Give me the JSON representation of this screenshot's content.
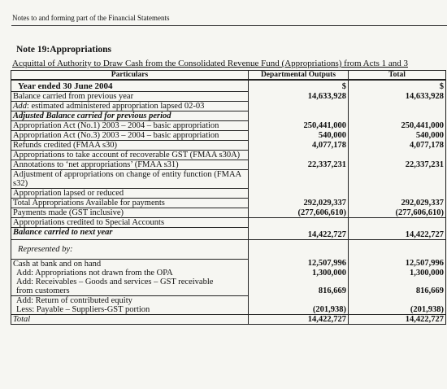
{
  "page_header": "Notes to and forming part of the Financial Statements",
  "note_title": "Note 19:Appropriations",
  "subtitle": "Acquittal of Authority to Draw Cash from the Consolidated Revenue Fund (Appropriations) from Acts 1 and 3",
  "columns": {
    "particulars": "Particulars",
    "departmental_outputs": "Departmental Outputs",
    "total": "Total"
  },
  "year_label": "Year ended 30 June 2004",
  "currency": {
    "dept": "$",
    "total": "$"
  },
  "rows": {
    "r1": {
      "label": "Balance carried from previous year",
      "dept": "14,633,928",
      "total": "14,633,928"
    },
    "r2": {
      "label_em": "Add",
      "label": ": estimated administered appropriation lapsed 02-03"
    },
    "r3": {
      "label": "Adjusted Balance carried for previous period"
    },
    "r4": {
      "label": "Appropriation Act (No.1) 2003 – 2004 – basic appropriation",
      "dept": "250,441,000",
      "total": "250,441,000"
    },
    "r5": {
      "label": "Appropriation Act (No.3) 2003 – 2004 – basic appropriation",
      "dept": "540,000",
      "total": "540,000"
    },
    "r6": {
      "label": "Refunds credited (FMAA s30)",
      "dept": "4,077,178",
      "total": "4,077,178"
    },
    "r7": {
      "label": "Appropriations to take account of recoverable GST (FMAA s30A)"
    },
    "r8": {
      "label": "Annotations to ‘net appropriations’ (FMAA s31)",
      "dept": "22,337,231",
      "total": "22,337,231"
    },
    "r9": {
      "label": "Adjustment of appropriations on change of entity function (FMAA s32)"
    },
    "r10": {
      "label": "Appropriation lapsed or reduced"
    },
    "r11": {
      "label": "Total Appropriations Available for payments",
      "dept": "292,029,337",
      "total": "292,029,337"
    },
    "r12": {
      "label": "Payments made (GST inclusive)",
      "dept": "(277,606,610)",
      "total": "(277,606,610)"
    },
    "r13": {
      "label": "Appropriations credited to Special Accounts"
    },
    "r14": {
      "label": "Balance carried to next year",
      "dept": "14,422,727",
      "total": "14,422,727"
    },
    "represented_by": "Represented by:",
    "r15": {
      "label": "Cash at bank and on hand",
      "dept": "12,507,996",
      "total": "12,507,996"
    },
    "r16": {
      "label": "Add: Appropriations not drawn from the OPA",
      "dept": "1,300,000",
      "total": "1,300,000"
    },
    "r17": {
      "label": "Add: Receivables – Goods and services – GST receivable"
    },
    "r18": {
      "label": "from customers",
      "dept": "816,669",
      "total": "816,669"
    },
    "r19": {
      "label": "Add: Return of contributed equity"
    },
    "r20": {
      "label": "Less: Payable – Suppliers-GST portion",
      "dept": "(201,938)",
      "total": "(201,938)"
    },
    "r21": {
      "label": "Total",
      "dept": "14,422,727",
      "total": "14,422,727"
    }
  }
}
